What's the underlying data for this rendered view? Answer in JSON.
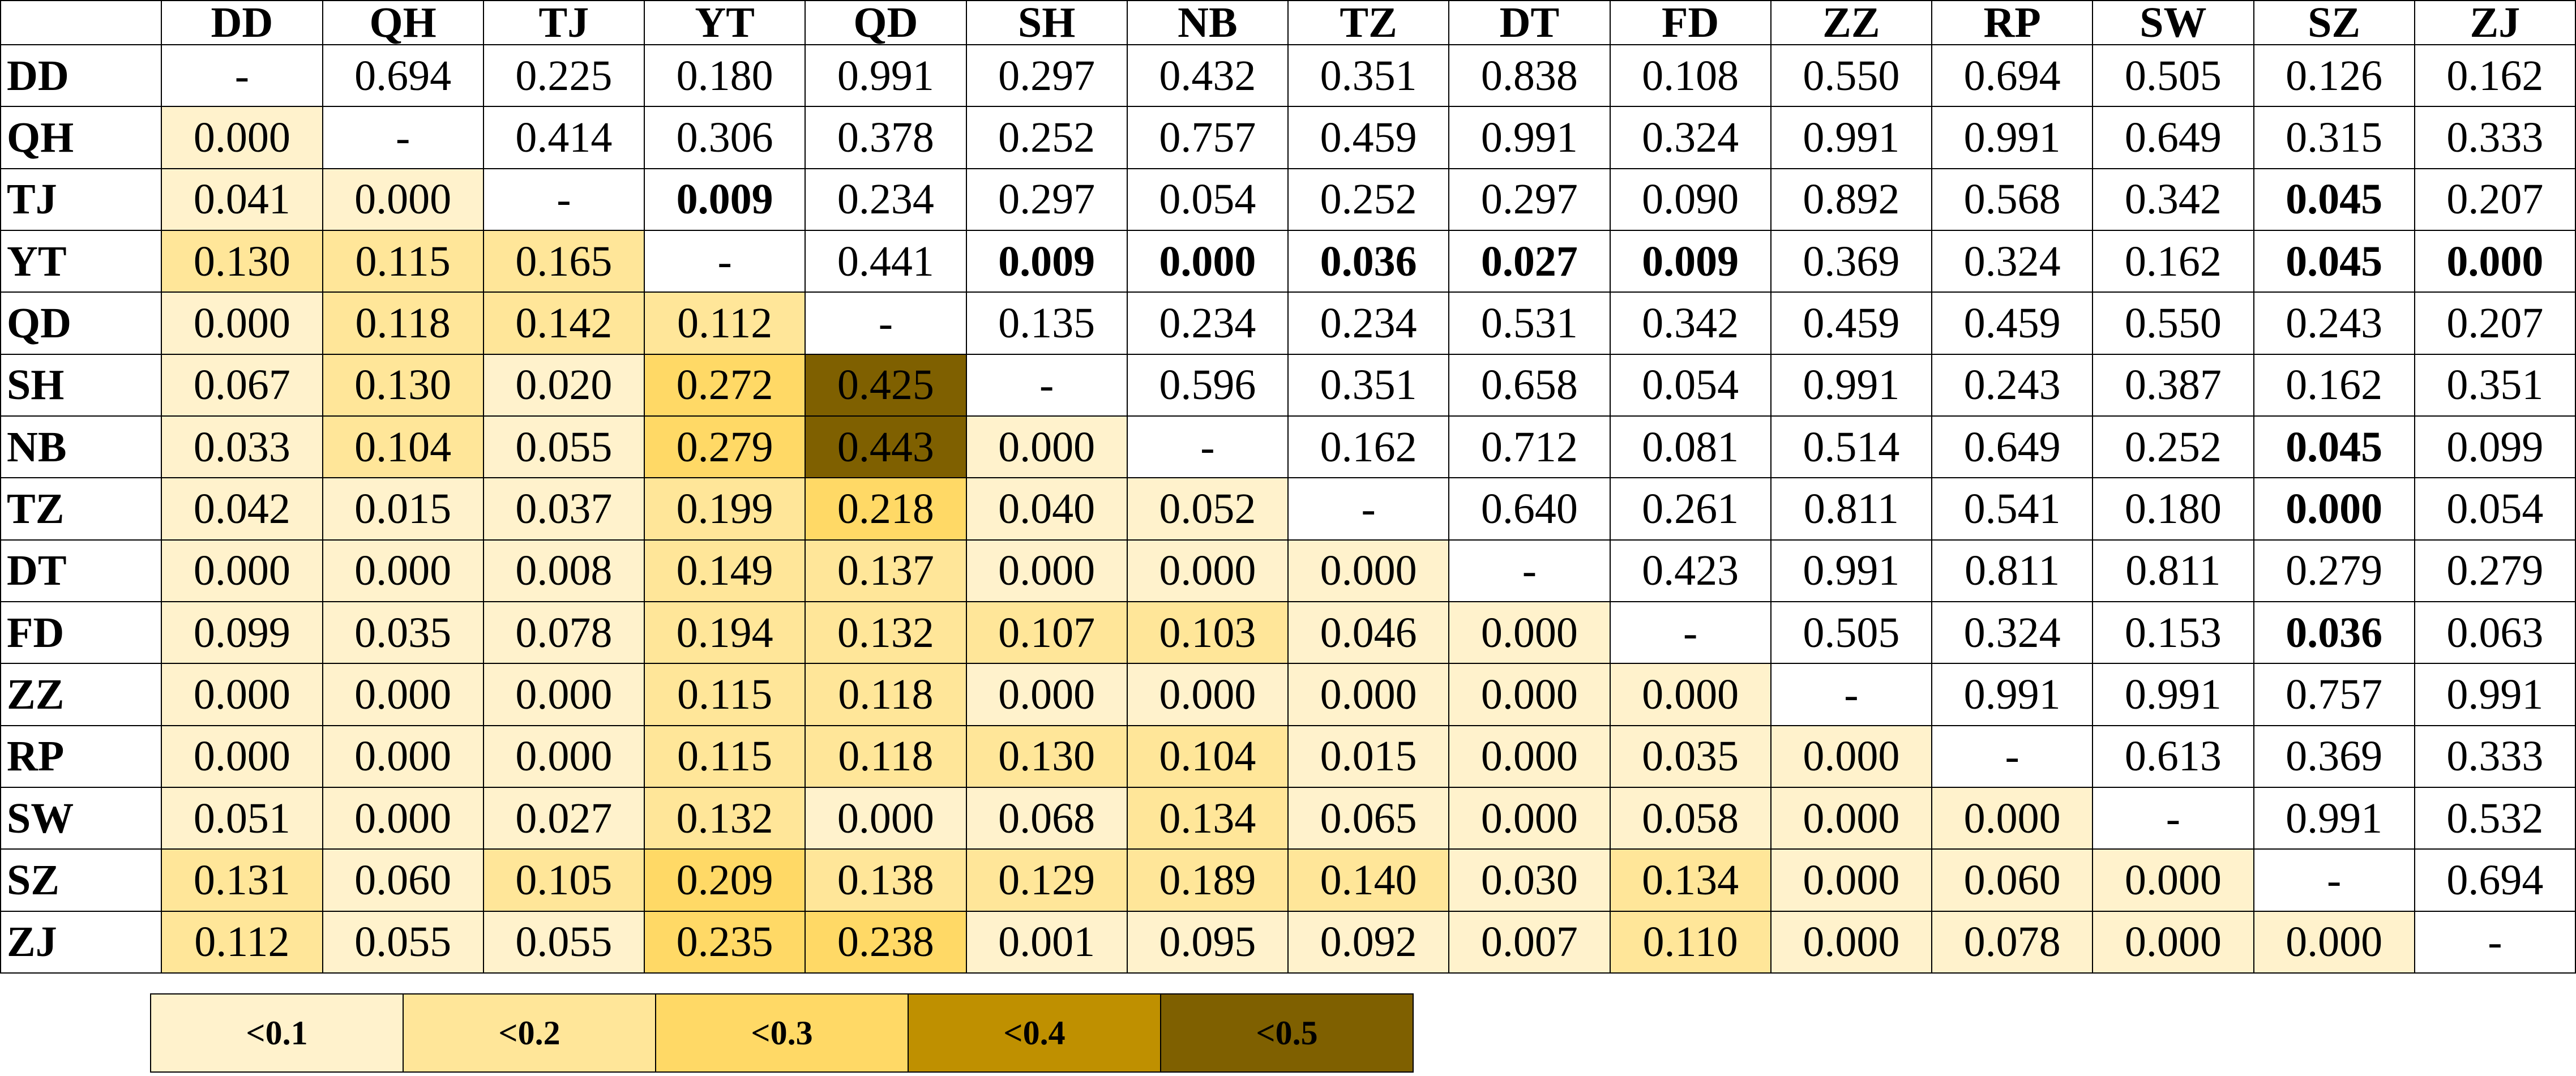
{
  "chart_data": {
    "type": "table",
    "labels": [
      "DD",
      "QH",
      "TJ",
      "YT",
      "QD",
      "SH",
      "NB",
      "TZ",
      "DT",
      "FD",
      "ZZ",
      "RP",
      "SW",
      "SZ",
      "ZJ"
    ],
    "rows": [
      [
        "-",
        "0.694",
        "0.225",
        "0.180",
        "0.991",
        "0.297",
        "0.432",
        "0.351",
        "0.838",
        "0.108",
        "0.550",
        "0.694",
        "0.505",
        "0.126",
        "0.162"
      ],
      [
        "0.000",
        "-",
        "0.414",
        "0.306",
        "0.378",
        "0.252",
        "0.757",
        "0.459",
        "0.991",
        "0.324",
        "0.991",
        "0.991",
        "0.649",
        "0.315",
        "0.333"
      ],
      [
        "0.041",
        "0.000",
        "-",
        "0.009",
        "0.234",
        "0.297",
        "0.054",
        "0.252",
        "0.297",
        "0.090",
        "0.892",
        "0.568",
        "0.342",
        "0.045",
        "0.207"
      ],
      [
        "0.130",
        "0.115",
        "0.165",
        "-",
        "0.441",
        "0.009",
        "0.000",
        "0.036",
        "0.027",
        "0.009",
        "0.369",
        "0.324",
        "0.162",
        "0.045",
        "0.000"
      ],
      [
        "0.000",
        "0.118",
        "0.142",
        "0.112",
        "-",
        "0.135",
        "0.234",
        "0.234",
        "0.531",
        "0.342",
        "0.459",
        "0.459",
        "0.550",
        "0.243",
        "0.207"
      ],
      [
        "0.067",
        "0.130",
        "0.020",
        "0.272",
        "0.425",
        "-",
        "0.596",
        "0.351",
        "0.658",
        "0.054",
        "0.991",
        "0.243",
        "0.387",
        "0.162",
        "0.351"
      ],
      [
        "0.033",
        "0.104",
        "0.055",
        "0.279",
        "0.443",
        "0.000",
        "-",
        "0.162",
        "0.712",
        "0.081",
        "0.514",
        "0.649",
        "0.252",
        "0.045",
        "0.099"
      ],
      [
        "0.042",
        "0.015",
        "0.037",
        "0.199",
        "0.218",
        "0.040",
        "0.052",
        "-",
        "0.640",
        "0.261",
        "0.811",
        "0.541",
        "0.180",
        "0.000",
        "0.054"
      ],
      [
        "0.000",
        "0.000",
        "0.008",
        "0.149",
        "0.137",
        "0.000",
        "0.000",
        "0.000",
        "-",
        "0.423",
        "0.991",
        "0.811",
        "0.811",
        "0.279",
        "0.279"
      ],
      [
        "0.099",
        "0.035",
        "0.078",
        "0.194",
        "0.132",
        "0.107",
        "0.103",
        "0.046",
        "0.000",
        "-",
        "0.505",
        "0.324",
        "0.153",
        "0.036",
        "0.063"
      ],
      [
        "0.000",
        "0.000",
        "0.000",
        "0.115",
        "0.118",
        "0.000",
        "0.000",
        "0.000",
        "0.000",
        "0.000",
        "-",
        "0.991",
        "0.991",
        "0.757",
        "0.991"
      ],
      [
        "0.000",
        "0.000",
        "0.000",
        "0.115",
        "0.118",
        "0.130",
        "0.104",
        "0.015",
        "0.000",
        "0.035",
        "0.000",
        "-",
        "0.613",
        "0.369",
        "0.333"
      ],
      [
        "0.051",
        "0.000",
        "0.027",
        "0.132",
        "0.000",
        "0.068",
        "0.134",
        "0.065",
        "0.000",
        "0.058",
        "0.000",
        "0.000",
        "-",
        "0.991",
        "0.532"
      ],
      [
        "0.131",
        "0.060",
        "0.105",
        "0.209",
        "0.138",
        "0.129",
        "0.189",
        "0.140",
        "0.030",
        "0.134",
        "0.000",
        "0.060",
        "0.000",
        "-",
        "0.694"
      ],
      [
        "0.112",
        "0.055",
        "0.055",
        "0.235",
        "0.238",
        "0.001",
        "0.095",
        "0.092",
        "0.007",
        "0.110",
        "0.000",
        "0.078",
        "0.000",
        "0.000",
        "-"
      ]
    ],
    "significance_threshold": 0.05,
    "legend": [
      {
        "label": "<0.1",
        "color": "#fff2cc"
      },
      {
        "label": "<0.2",
        "color": "#ffe699"
      },
      {
        "label": "<0.3",
        "color": "#ffd966"
      },
      {
        "label": "<0.4",
        "color": "#bf9000"
      },
      {
        "label": "<0.5",
        "color": "#7f6000"
      }
    ]
  }
}
